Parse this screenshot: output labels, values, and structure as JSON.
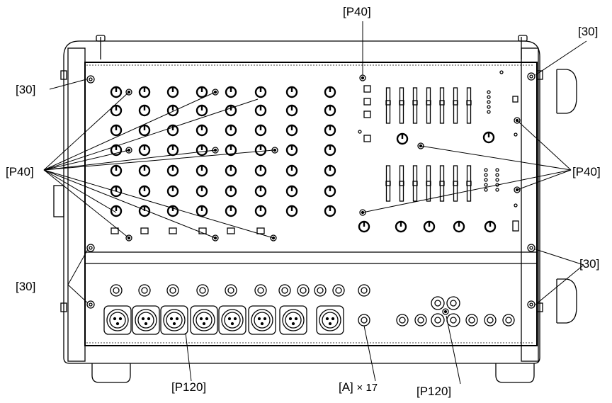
{
  "callouts": {
    "p40_top": "[P40]",
    "p40_left": "[P40]",
    "p40_right": "[P40]",
    "screw_30_top_left": "[30]",
    "screw_30_top_right": "[30]",
    "screw_30_bottom_left": "[30]",
    "screw_30_bottom_right": "[30]",
    "p120_left": "[P120]",
    "p120_right": "[P120]",
    "a_label": "[A]",
    "a_count": "× 17"
  }
}
